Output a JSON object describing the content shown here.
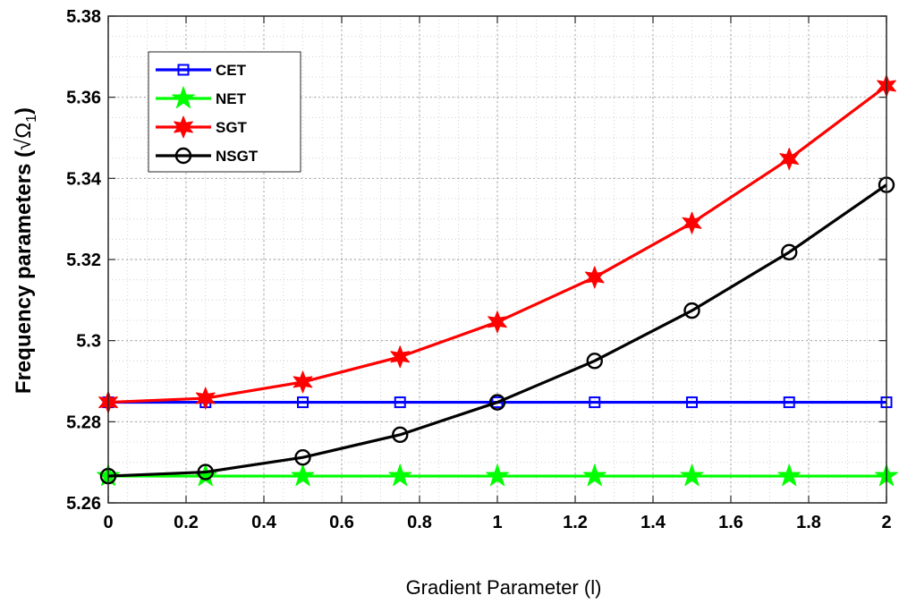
{
  "chart_data": {
    "type": "line",
    "xlabel": "Gradient Parameter (l)",
    "ylabel_main": "Frequency parameters (",
    "ylabel_sqrt": "√",
    "ylabel_symbol": "Ω",
    "ylabel_sub": "1",
    "ylabel_close": ")",
    "x": [
      0,
      0.25,
      0.5,
      0.75,
      1,
      1.25,
      1.5,
      1.75,
      2
    ],
    "xlim": [
      0,
      2
    ],
    "ylim": [
      5.26,
      5.38
    ],
    "xticks": [
      0,
      0.2,
      0.4,
      0.6,
      0.8,
      1,
      1.2,
      1.4,
      1.6,
      1.8,
      2
    ],
    "xtick_labels": [
      "0",
      "0.2",
      "0.4",
      "0.6",
      "0.8",
      "1",
      "1.2",
      "1.4",
      "1.6",
      "1.8",
      "2"
    ],
    "yticks": [
      5.26,
      5.28,
      5.3,
      5.32,
      5.34,
      5.36,
      5.38
    ],
    "ytick_labels": [
      "5.26",
      "5.28",
      "5.3",
      "5.32",
      "5.34",
      "5.36",
      "5.38"
    ],
    "grid": true,
    "legend_position": "top-left",
    "series": [
      {
        "name": "CET",
        "color": "#0000ff",
        "marker": "square",
        "values": [
          5.2848,
          5.2848,
          5.2848,
          5.2848,
          5.2848,
          5.2848,
          5.2848,
          5.2848,
          5.2848
        ]
      },
      {
        "name": "NET",
        "color": "#00ff00",
        "marker": "star5",
        "values": [
          5.2666,
          5.2666,
          5.2666,
          5.2666,
          5.2666,
          5.2666,
          5.2666,
          5.2666,
          5.2666
        ]
      },
      {
        "name": "SGT",
        "color": "#ff0000",
        "marker": "star6",
        "values": [
          5.2848,
          5.2858,
          5.2898,
          5.296,
          5.3046,
          5.3156,
          5.329,
          5.3448,
          5.3628
        ]
      },
      {
        "name": "NSGT",
        "color": "#000000",
        "marker": "circle",
        "values": [
          5.2666,
          5.2676,
          5.2712,
          5.2768,
          5.2848,
          5.295,
          5.3074,
          5.3218,
          5.3384
        ]
      }
    ]
  }
}
